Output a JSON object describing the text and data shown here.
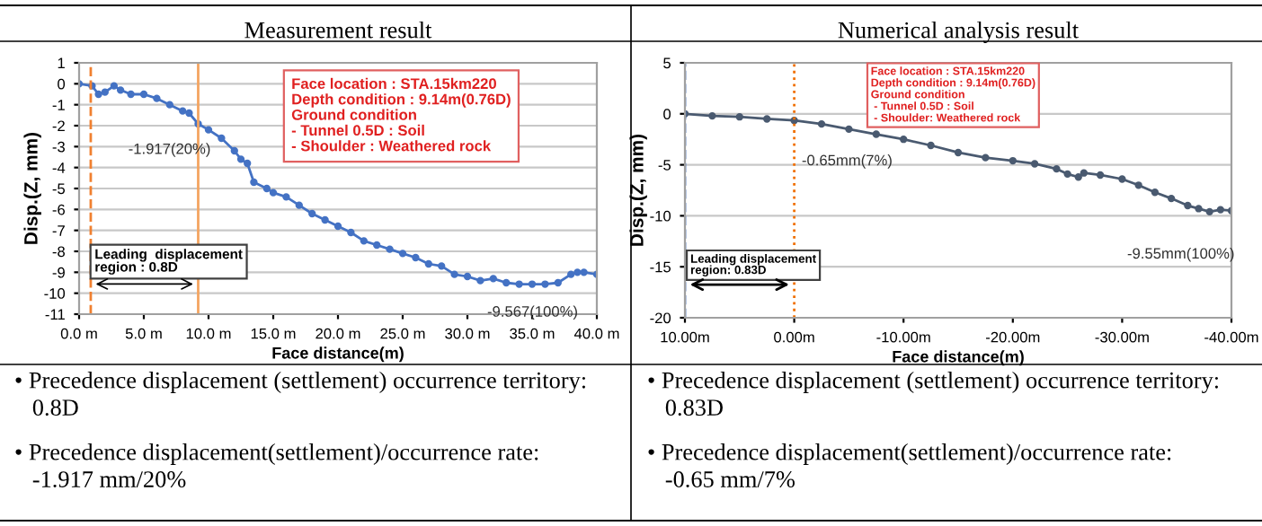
{
  "chart_data": [
    {
      "type": "line",
      "title": "Measurement result",
      "xlabel": "Face distance(m)",
      "ylabel": "Disp.(Z, mm)",
      "x": [
        0,
        1,
        1.5,
        2,
        2.7,
        3.2,
        4,
        5,
        6,
        7,
        8,
        8.5,
        9.2,
        10,
        11,
        12,
        12.5,
        13,
        13.5,
        14.5,
        15,
        16,
        17,
        18,
        19,
        20,
        21,
        22,
        23,
        24,
        25,
        26,
        27,
        28,
        29,
        30,
        31,
        32,
        33,
        34,
        35,
        36,
        37,
        38,
        38.5,
        39,
        40
      ],
      "series": [
        {
          "color": "#4472c4",
          "values": [
            0,
            -0.1,
            -0.5,
            -0.4,
            -0.1,
            -0.3,
            -0.5,
            -0.5,
            -0.7,
            -1.0,
            -1.3,
            -1.4,
            -1.917,
            -2.2,
            -2.6,
            -3.2,
            -3.6,
            -3.8,
            -4.7,
            -5.0,
            -5.2,
            -5.4,
            -5.8,
            -6.2,
            -6.5,
            -6.8,
            -7.1,
            -7.5,
            -7.7,
            -7.9,
            -8.1,
            -8.3,
            -8.6,
            -8.7,
            -9.1,
            -9.2,
            -9.4,
            -9.3,
            -9.5,
            -9.567,
            -9.567,
            -9.567,
            -9.5,
            -9.1,
            -9.0,
            -9.0,
            -9.1
          ]
        }
      ],
      "xlim": [
        0,
        40
      ],
      "xticks": [
        {
          "value": 0,
          "label": "0.0 m"
        },
        {
          "value": 5,
          "label": "5.0 m"
        },
        {
          "value": 10,
          "label": "10.0 m"
        },
        {
          "value": 15,
          "label": "15.0 m"
        },
        {
          "value": 20,
          "label": "20.0 m"
        },
        {
          "value": 25,
          "label": "25.0 m"
        },
        {
          "value": 30,
          "label": "30.0 m"
        },
        {
          "value": 35,
          "label": "35.0 m"
        },
        {
          "value": 40,
          "label": "40.0 m"
        }
      ],
      "ylim": [
        -11,
        1
      ],
      "yticks": [
        -11,
        -10,
        -9,
        -8,
        -7,
        -6,
        -5,
        -4,
        -3,
        -2,
        -1,
        0,
        1
      ],
      "grid": "y",
      "marker": "circle",
      "line_style": "solid",
      "legend": false,
      "ref_lines": [
        {
          "axis": "x",
          "value": 0.9,
          "color": "#f08030",
          "line_style": "dashed"
        },
        {
          "axis": "x",
          "value": 9.2,
          "color": "#f4a460",
          "line_style": "solid"
        }
      ],
      "annotations": [
        {
          "text": "-1.917(20%)",
          "x": 9.2,
          "y": -1.917
        },
        {
          "text": "-9.567(100%)",
          "x": 35,
          "y": -9.567
        },
        "Face location : STA.15km220\nDepth condition : 9.14m(0.76D)\nGround condition\n- Tunnel 0.5D : Soil\n- Shoulder : Weathered rock",
        "Leading  displacement\nregion : 0.8D",
        "• Precedence displacement (settlement) occurrence territory:\n   0.8D",
        "• Precedence displacement(settlement)/occurrence rate:\n   -1.917 mm/20%"
      ]
    },
    {
      "type": "line",
      "title": "Numerical analysis result",
      "xlabel": "Face distance(m)",
      "ylabel": "Disp.(Z, mm)",
      "x": [
        10,
        7.5,
        5,
        2.5,
        0,
        -2.5,
        -5,
        -7.5,
        -10,
        -12.5,
        -15,
        -17.5,
        -20,
        -22,
        -24,
        -25,
        -26,
        -26.5,
        -28,
        -30,
        -31.5,
        -33,
        -34.5,
        -36,
        -37,
        -38,
        -39,
        -40
      ],
      "series": [
        {
          "color": "#4a5a70",
          "values": [
            0,
            -0.2,
            -0.3,
            -0.5,
            -0.65,
            -1.0,
            -1.5,
            -2.0,
            -2.5,
            -3.1,
            -3.8,
            -4.3,
            -4.6,
            -4.9,
            -5.4,
            -5.9,
            -6.2,
            -5.8,
            -6.0,
            -6.4,
            -7.0,
            -7.7,
            -8.3,
            -9.0,
            -9.3,
            -9.6,
            -9.4,
            -9.5
          ]
        }
      ],
      "xlim": [
        10,
        -40
      ],
      "xticks": [
        {
          "value": 10,
          "label": "10.00m"
        },
        {
          "value": 0,
          "label": "0.00m"
        },
        {
          "value": -10,
          "label": "-10.00m"
        },
        {
          "value": -20,
          "label": "-20.00m"
        },
        {
          "value": -30,
          "label": "-30.00m"
        },
        {
          "value": -40,
          "label": "-40.00m"
        }
      ],
      "ylim": [
        -20,
        5
      ],
      "yticks": [
        -20,
        -15,
        -10,
        -5,
        0,
        5
      ],
      "grid": "y",
      "marker": "circle",
      "line_style": "solid",
      "legend": false,
      "ref_lines": [
        {
          "axis": "x",
          "value": 10,
          "color": "#4472c4",
          "line_style": "dashed"
        },
        {
          "axis": "x",
          "value": 0,
          "color": "#f07000",
          "line_style": "dotted"
        }
      ],
      "annotations": [
        {
          "text": "-0.65mm(7%)",
          "x": 0,
          "y": -0.65
        },
        {
          "text": "-9.55mm(100%)",
          "x": -38,
          "y": -9.55
        },
        "Face location : STA.15km220\nDepth condition : 9.14m(0.76D)\nGround condition\n - Tunnel 0.5D : Soil\n - Shoulder: Weathered rock",
        "Leading displacement\nregion: 0.83D",
        "• Precedence displacement (settlement) occurrence territory:\n   0.83D",
        "• Precedence displacement(settlement)/occurrence rate:\n   -0.65 mm/7%"
      ]
    }
  ]
}
